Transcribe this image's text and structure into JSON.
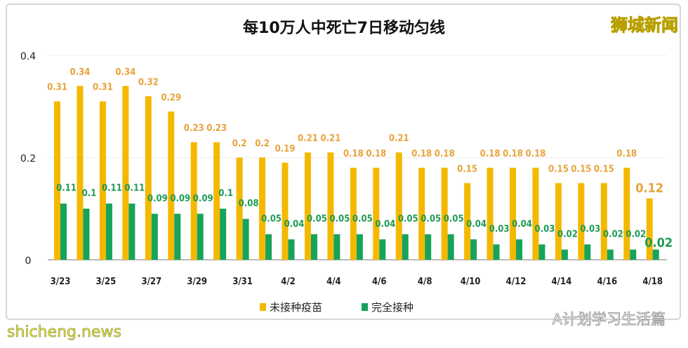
{
  "chart_data": {
    "type": "bar",
    "title": "每10万人中死亡7日移动匀线",
    "x_tick_labels": [
      "3/23",
      "3/25",
      "3/27",
      "3/29",
      "3/31",
      "4/2",
      "4/4",
      "4/6",
      "4/8",
      "4/10",
      "4/12",
      "4/14",
      "4/16",
      "4/18"
    ],
    "y_ticks": [
      0,
      0.2,
      0.4
    ],
    "ylim": [
      0,
      0.4
    ],
    "grid": true,
    "legend_position": "bottom",
    "series": [
      {
        "name": "未接种疫苗",
        "color": "#f5b800",
        "label_color": "#e8a33a",
        "values": [
          0.31,
          0.34,
          0.31,
          0.34,
          0.32,
          0.29,
          0.23,
          0.23,
          0.2,
          0.2,
          0.19,
          0.21,
          0.21,
          0.18,
          0.18,
          0.21,
          0.18,
          0.18,
          0.15,
          0.18,
          0.18,
          0.18,
          0.15,
          0.15,
          0.15,
          0.18,
          0.12
        ]
      },
      {
        "name": "完全接种",
        "color": "#16a35a",
        "label_color": "#1f9a55",
        "values": [
          0.11,
          0.1,
          0.11,
          0.11,
          0.09,
          0.09,
          0.09,
          0.1,
          0.08,
          0.05,
          0.04,
          0.05,
          0.05,
          0.05,
          0.04,
          0.05,
          0.05,
          0.05,
          0.04,
          0.03,
          0.04,
          0.03,
          0.02,
          0.03,
          0.02,
          0.02,
          0.02
        ]
      }
    ]
  },
  "logo": "狮城新闻",
  "watermark_left": "shicheng.news",
  "watermark_right": "A计划学习生活篇"
}
